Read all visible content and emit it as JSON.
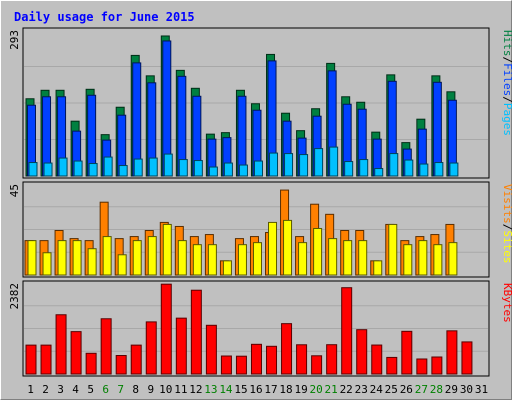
{
  "chart_data": {
    "type": "bar",
    "title": "Daily usage for June 2015",
    "categories": [
      "1",
      "2",
      "3",
      "4",
      "5",
      "6",
      "7",
      "8",
      "9",
      "10",
      "11",
      "12",
      "13",
      "14",
      "15",
      "16",
      "17",
      "18",
      "19",
      "20",
      "21",
      "22",
      "23",
      "24",
      "25",
      "26",
      "27",
      "28",
      "29",
      "30",
      "31"
    ],
    "weekend_days": [
      "6",
      "7",
      "13",
      "14",
      "20",
      "21",
      "27",
      "28"
    ],
    "panels": [
      {
        "id": "hits-panel",
        "ymax_label": "293",
        "ylim": [
          0,
          293
        ],
        "side_labels": [
          "Pages",
          "Files",
          "Hits"
        ],
        "series": [
          {
            "name": "Hits",
            "color": "#008040",
            "values": [
              155,
              172,
              172,
              110,
              174,
              83,
              138,
              242,
              201,
              281,
              212,
              176,
              84,
              87,
              172,
              145,
              244,
              126,
              91,
              135,
              226,
              159,
              148,
              88,
              203,
              67,
              114,
              201,
              169,
              0,
              0
            ]
          },
          {
            "name": "Files",
            "color": "#0040ff",
            "values": [
              142,
              159,
              159,
              90,
              162,
              72,
              122,
              227,
              187,
              271,
              200,
              160,
              74,
              77,
              160,
              132,
              231,
              110,
              76,
              120,
              211,
              144,
              134,
              74,
              190,
              54,
              94,
              188,
              152,
              0,
              0
            ]
          },
          {
            "name": "Pages",
            "color": "#00c0ff",
            "values": [
              27,
              26,
              36,
              30,
              25,
              38,
              21,
              34,
              36,
              44,
              33,
              31,
              18,
              26,
              22,
              30,
              46,
              45,
              43,
              55,
              58,
              29,
              33,
              15,
              45,
              32,
              24,
              27,
              26,
              0,
              0
            ]
          }
        ]
      },
      {
        "id": "visits-panel",
        "ymax_label": "45",
        "ylim": [
          0,
          45
        ],
        "side_labels": [
          "Sites",
          "Visits"
        ],
        "series": [
          {
            "name": "Visits",
            "color": "#ff8000",
            "values": [
              17,
              17,
              22,
              18,
              17,
              36,
              18,
              19,
              22,
              26,
              24,
              19,
              20,
              7,
              18,
              19,
              21,
              42,
              19,
              35,
              30,
              22,
              22,
              7,
              25,
              17,
              19,
              20,
              25,
              0,
              0
            ]
          },
          {
            "name": "Sites",
            "color": "#ffff00",
            "values": [
              17,
              11,
              17,
              17,
              13,
              19,
              10,
              17,
              19,
              25,
              17,
              15,
              15,
              7,
              15,
              16,
              26,
              27,
              16,
              23,
              18,
              17,
              17,
              7,
              25,
              15,
              17,
              15,
              16,
              0,
              0
            ]
          }
        ]
      },
      {
        "id": "kbytes-panel",
        "ymax_label": "2382",
        "ylim": [
          0,
          2382
        ],
        "side_labels": [
          "KBytes"
        ],
        "series": [
          {
            "name": "KBytes",
            "color": "#ff0000",
            "values": [
              756,
              756,
              1551,
              1109,
              542,
              1446,
              484,
              756,
              1364,
              2351,
              1462,
              2193,
              1275,
              471,
              466,
              777,
              725,
              1318,
              765,
              477,
              767,
              2259,
              1160,
              758,
              434,
              1117,
              393,
              445,
              1130,
              840,
              0
            ]
          }
        ]
      }
    ],
    "colors": {
      "frame": "#c0c0c0",
      "plot_bg": "#c0c0c0",
      "title_text": "#0000ff",
      "axis_text": "#000000",
      "weekend_text": "#008000"
    }
  }
}
